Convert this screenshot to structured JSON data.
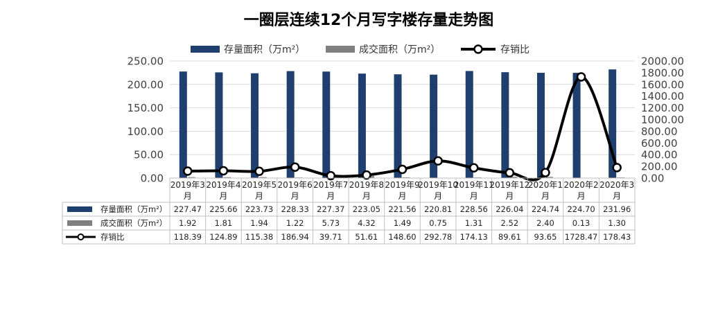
{
  "chart_data": {
    "type": "bar",
    "title": "一圈层连续12个月写字楼存量走势图",
    "categories": [
      [
        "2019年3",
        "月"
      ],
      [
        "2019年4",
        "月"
      ],
      [
        "2019年5",
        "月"
      ],
      [
        "2019年6",
        "月"
      ],
      [
        "2019年7",
        "月"
      ],
      [
        "2019年8",
        "月"
      ],
      [
        "2019年9",
        "月"
      ],
      [
        "2019年10",
        "月"
      ],
      [
        "2019年11",
        "月"
      ],
      [
        "2019年12",
        "月"
      ],
      [
        "2020年1",
        "月"
      ],
      [
        "2020年2",
        "月"
      ],
      [
        "2020年3",
        "月"
      ]
    ],
    "series": [
      {
        "name": "存量面积（万m²）",
        "type": "bar",
        "axis": "left",
        "color": "#1f3f6e",
        "values": [
          227.47,
          225.66,
          223.73,
          228.33,
          227.37,
          223.05,
          221.56,
          220.81,
          228.56,
          226.04,
          224.74,
          224.7,
          231.96
        ],
        "labels": [
          "227.47",
          "225.66",
          "223.73",
          "228.33",
          "227.37",
          "223.05",
          "221.56",
          "220.81",
          "228.56",
          "226.04",
          "224.74",
          "224.70",
          "231.96"
        ]
      },
      {
        "name": "成交面积（万m²）",
        "type": "bar",
        "axis": "left",
        "color": "#7f7f7f",
        "values": [
          1.92,
          1.81,
          1.94,
          1.22,
          5.73,
          4.32,
          1.49,
          0.75,
          1.31,
          2.52,
          2.4,
          0.13,
          1.3
        ],
        "labels": [
          "1.92",
          "1.81",
          "1.94",
          "1.22",
          "5.73",
          "4.32",
          "1.49",
          "0.75",
          "1.31",
          "2.52",
          "2.40",
          "0.13",
          "1.30"
        ]
      },
      {
        "name": "存销比",
        "type": "line",
        "axis": "right",
        "color": "#000000",
        "values": [
          118.39,
          124.89,
          115.38,
          186.94,
          39.71,
          51.61,
          148.6,
          292.78,
          174.13,
          89.61,
          93.65,
          1728.47,
          178.43
        ],
        "labels": [
          "118.39",
          "124.89",
          "115.38",
          "186.94",
          "39.71",
          "51.61",
          "148.60",
          "292.78",
          "174.13",
          "89.61",
          "93.65",
          "1728.47",
          "178.43"
        ]
      }
    ],
    "y_left": {
      "range": [
        0,
        250
      ],
      "ticks": [
        "250.00",
        "200.00",
        "150.00",
        "100.00",
        "50.00",
        "0.00"
      ]
    },
    "y_right": {
      "range": [
        0,
        2000
      ],
      "ticks": [
        "2000.00",
        "1800.00",
        "1600.00",
        "1400.00",
        "1200.00",
        "1000.00",
        "800.00",
        "600.00",
        "400.00",
        "200.00",
        "0.00"
      ]
    },
    "grid": true,
    "legend_position": "top",
    "data_table": true
  }
}
